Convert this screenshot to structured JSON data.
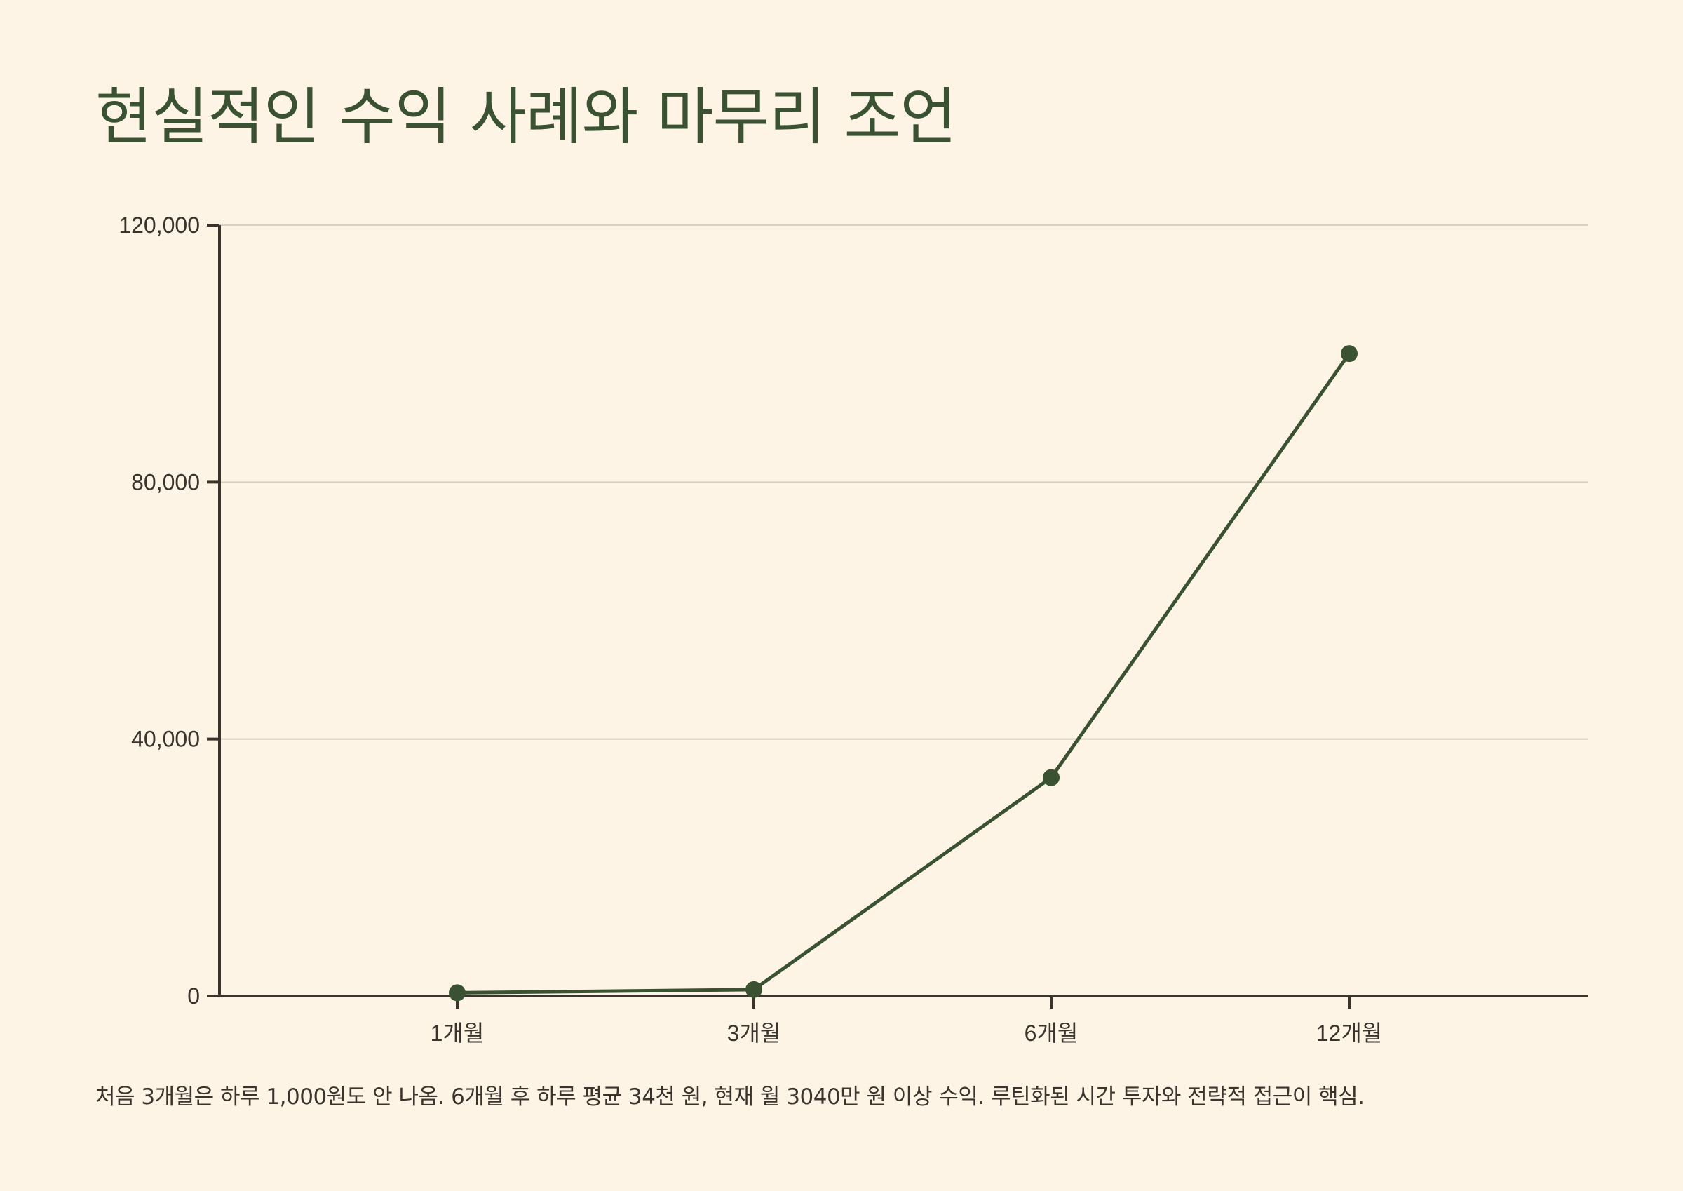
{
  "title": "현실적인 수익 사례와 마무리 조언",
  "caption": "처음 3개월은 하루 1,000원도 안 나옴. 6개월 후 하루 평균 34천 원, 현재 월 3040만 원 이상 수익. 루틴화된 시간 투자와 전략적 접근이 핵심.",
  "colors": {
    "background": "#fdf4e5",
    "line": "#3a5232",
    "axis": "#3b342d",
    "grid": "#d7d1c1"
  },
  "chart_data": {
    "type": "line",
    "title": "",
    "xlabel": "",
    "ylabel": "",
    "categories": [
      "1개월",
      "3개월",
      "6개월",
      "12개월"
    ],
    "series": [
      {
        "values": [
          500,
          1000,
          34000,
          100000
        ]
      }
    ],
    "ylim": [
      0,
      120000
    ],
    "yticks": [
      0,
      40000,
      80000,
      120000
    ],
    "ytick_labels": [
      "0",
      "40,000",
      "80,000",
      "120,000"
    ],
    "grid": true,
    "legend": "none"
  }
}
